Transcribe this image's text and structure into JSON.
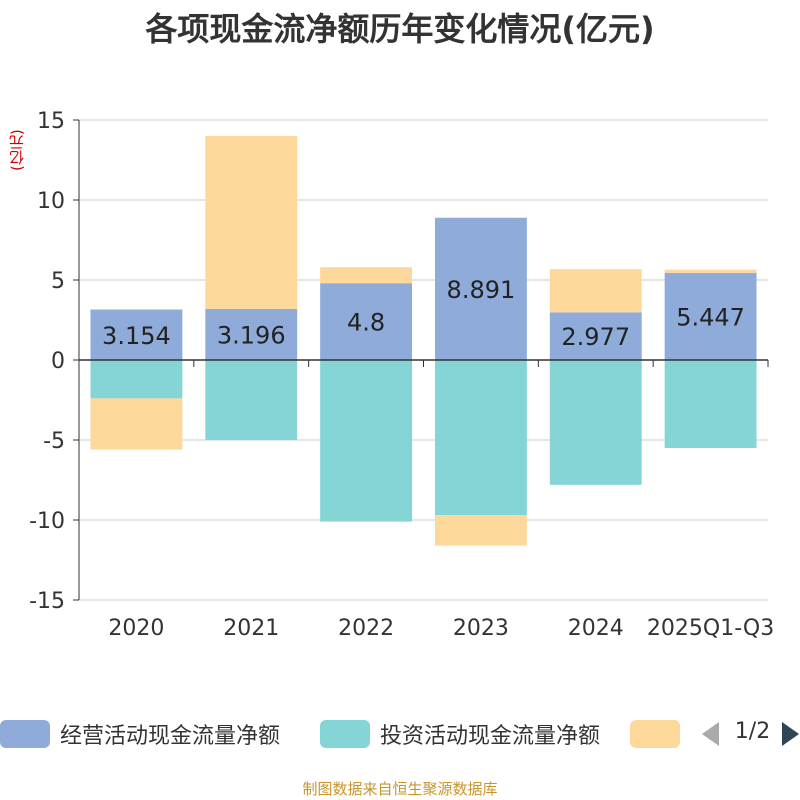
{
  "title": "各项现金流净额历年变化情况(亿元)",
  "unit_label": "(亿元)",
  "source": "制图数据来自恒生聚源数据库",
  "legend": {
    "items": [
      {
        "label": "经营活动现金流量净额",
        "color": "#8eabd9"
      },
      {
        "label": "投资活动现金流量净额",
        "color": "#85d4d6"
      },
      {
        "label": "",
        "color": "#fdd89a"
      }
    ],
    "page_indicator": "1/2"
  },
  "chart_data": {
    "type": "bar",
    "stacked": true,
    "categories": [
      "2020",
      "2021",
      "2022",
      "2023",
      "2024",
      "2025Q1-Q3"
    ],
    "ylim": [
      -15,
      15
    ],
    "yticks": [
      15,
      10,
      5,
      0,
      -5,
      -10,
      -15
    ],
    "grid": true,
    "series": [
      {
        "name": "经营活动现金流量净额",
        "color": "#8eabd9",
        "values": [
          3.154,
          3.196,
          4.8,
          8.891,
          2.977,
          5.447
        ],
        "labels": [
          "3.154",
          "3.196",
          "4.8",
          "8.891",
          "2.977",
          "5.447"
        ]
      },
      {
        "name": "投资活动现金流量净额",
        "color": "#85d4d6",
        "values": [
          -2.4,
          -5.0,
          -10.1,
          -9.7,
          -7.8,
          -5.5
        ]
      },
      {
        "name": "",
        "color": "#fdd89a",
        "values": [
          -3.2,
          10.8,
          1.0,
          -1.9,
          2.7,
          0.2
        ]
      }
    ]
  }
}
